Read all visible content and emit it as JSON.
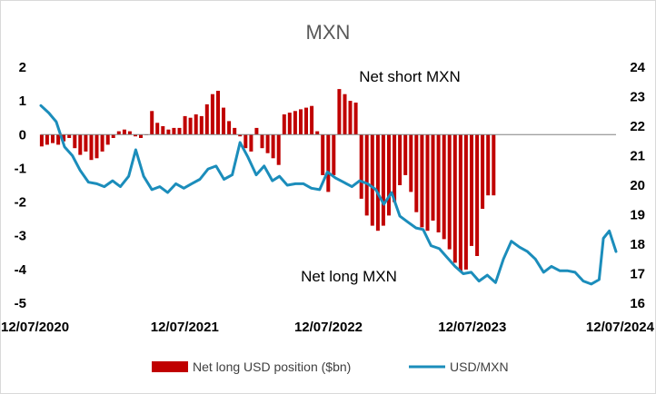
{
  "chart_data": {
    "type": "bar",
    "title": "MXN",
    "xlabel": "",
    "ylabel": "",
    "x_range": [
      "2020-07-12",
      "2024-07-12"
    ],
    "x_ticks": [
      "12/07/2020",
      "12/07/2021",
      "12/07/2022",
      "12/07/2023",
      "12/07/2024"
    ],
    "y_left_lim": [
      -5,
      2
    ],
    "y_left_ticks": [
      "2",
      "1",
      "0",
      "-1",
      "-2",
      "-3",
      "-4",
      "-5"
    ],
    "y_right_lim": [
      16,
      24
    ],
    "y_right_ticks": [
      "24",
      "23",
      "22",
      "21",
      "20",
      "19",
      "18",
      "17",
      "16"
    ],
    "grid": false,
    "legend_position": "bottom",
    "annotations": [
      "Net short MXN",
      "Net long MXN"
    ],
    "colors": {
      "bars": "#c00000",
      "line": "#1b8dbb"
    },
    "series": [
      {
        "name": "Net long USD position ($bn)",
        "axis": "left",
        "type": "bar",
        "points": [
          [
            "2020-07-14",
            -0.35
          ],
          [
            "2020-07-28",
            -0.3
          ],
          [
            "2020-08-11",
            -0.25
          ],
          [
            "2020-08-25",
            -0.3
          ],
          [
            "2020-09-08",
            -0.2
          ],
          [
            "2020-09-22",
            -0.1
          ],
          [
            "2020-10-06",
            -0.4
          ],
          [
            "2020-10-20",
            -0.6
          ],
          [
            "2020-11-03",
            -0.5
          ],
          [
            "2020-11-17",
            -0.75
          ],
          [
            "2020-12-01",
            -0.7
          ],
          [
            "2020-12-15",
            -0.5
          ],
          [
            "2020-12-29",
            -0.3
          ],
          [
            "2021-01-12",
            -0.1
          ],
          [
            "2021-01-26",
            0.1
          ],
          [
            "2021-02-09",
            0.15
          ],
          [
            "2021-02-23",
            0.1
          ],
          [
            "2021-03-09",
            -0.05
          ],
          [
            "2021-03-23",
            -0.1
          ],
          [
            "2021-04-06",
            0.0
          ],
          [
            "2021-04-20",
            0.7
          ],
          [
            "2021-05-04",
            0.35
          ],
          [
            "2021-05-18",
            0.25
          ],
          [
            "2021-06-01",
            0.15
          ],
          [
            "2021-06-15",
            0.2
          ],
          [
            "2021-06-29",
            0.2
          ],
          [
            "2021-07-13",
            0.55
          ],
          [
            "2021-07-27",
            0.5
          ],
          [
            "2021-08-10",
            0.6
          ],
          [
            "2021-08-24",
            0.55
          ],
          [
            "2021-09-07",
            0.9
          ],
          [
            "2021-09-21",
            1.2
          ],
          [
            "2021-10-05",
            1.3
          ],
          [
            "2021-10-19",
            0.8
          ],
          [
            "2021-11-02",
            0.4
          ],
          [
            "2021-11-16",
            0.2
          ],
          [
            "2021-11-30",
            -0.05
          ],
          [
            "2021-12-14",
            -0.4
          ],
          [
            "2021-12-28",
            -0.5
          ],
          [
            "2022-01-11",
            0.2
          ],
          [
            "2022-01-25",
            -0.4
          ],
          [
            "2022-02-08",
            -0.55
          ],
          [
            "2022-02-22",
            -0.7
          ],
          [
            "2022-03-08",
            -0.9
          ],
          [
            "2022-03-22",
            0.6
          ],
          [
            "2022-04-05",
            0.65
          ],
          [
            "2022-04-19",
            0.7
          ],
          [
            "2022-05-03",
            0.75
          ],
          [
            "2022-05-17",
            0.8
          ],
          [
            "2022-05-31",
            0.85
          ],
          [
            "2022-06-14",
            0.1
          ],
          [
            "2022-06-28",
            -1.2
          ],
          [
            "2022-07-12",
            -1.7
          ],
          [
            "2022-07-26",
            -1.2
          ],
          [
            "2022-08-09",
            1.35
          ],
          [
            "2022-08-23",
            1.2
          ],
          [
            "2022-09-06",
            1.0
          ],
          [
            "2022-09-20",
            0.95
          ],
          [
            "2022-10-04",
            -1.9
          ],
          [
            "2022-10-18",
            -2.4
          ],
          [
            "2022-11-01",
            -2.7
          ],
          [
            "2022-11-15",
            -2.85
          ],
          [
            "2022-11-29",
            -2.7
          ],
          [
            "2022-12-13",
            -2.4
          ],
          [
            "2022-12-27",
            -2.0
          ],
          [
            "2023-01-10",
            -1.5
          ],
          [
            "2023-01-24",
            -1.2
          ],
          [
            "2023-02-07",
            -1.7
          ],
          [
            "2023-02-21",
            -2.3
          ],
          [
            "2023-03-07",
            -2.75
          ],
          [
            "2023-03-21",
            -2.85
          ],
          [
            "2023-04-04",
            -2.55
          ],
          [
            "2023-04-18",
            -2.9
          ],
          [
            "2023-05-02",
            -3.1
          ],
          [
            "2023-05-16",
            -3.4
          ],
          [
            "2023-05-30",
            -3.8
          ],
          [
            "2023-06-13",
            -4.05
          ],
          [
            "2023-06-27",
            -4.0
          ],
          [
            "2023-07-11",
            -3.3
          ],
          [
            "2023-07-25",
            -3.6
          ],
          [
            "2023-08-08",
            -2.2
          ],
          [
            "2023-08-22",
            -1.8
          ],
          [
            "2023-09-05",
            -1.8
          ]
        ]
      },
      {
        "name": "USD/MXN",
        "axis": "right",
        "type": "line",
        "points": [
          [
            "2020-07-12",
            22.7
          ],
          [
            "2020-08-01",
            22.45
          ],
          [
            "2020-08-20",
            22.15
          ],
          [
            "2020-09-10",
            21.3
          ],
          [
            "2020-09-30",
            21.0
          ],
          [
            "2020-10-20",
            20.5
          ],
          [
            "2020-11-10",
            20.1
          ],
          [
            "2020-12-01",
            20.05
          ],
          [
            "2020-12-20",
            19.95
          ],
          [
            "2021-01-10",
            20.15
          ],
          [
            "2021-01-30",
            19.95
          ],
          [
            "2021-02-20",
            20.3
          ],
          [
            "2021-03-10",
            21.2
          ],
          [
            "2021-03-30",
            20.3
          ],
          [
            "2021-04-20",
            19.85
          ],
          [
            "2021-05-10",
            19.95
          ],
          [
            "2021-05-30",
            19.75
          ],
          [
            "2021-06-20",
            20.05
          ],
          [
            "2021-07-10",
            19.9
          ],
          [
            "2021-07-30",
            20.05
          ],
          [
            "2021-08-20",
            20.2
          ],
          [
            "2021-09-10",
            20.55
          ],
          [
            "2021-09-30",
            20.65
          ],
          [
            "2021-10-20",
            20.2
          ],
          [
            "2021-11-10",
            20.35
          ],
          [
            "2021-11-30",
            21.45
          ],
          [
            "2021-12-20",
            20.95
          ],
          [
            "2022-01-10",
            20.35
          ],
          [
            "2022-01-30",
            20.65
          ],
          [
            "2022-02-20",
            20.15
          ],
          [
            "2022-03-10",
            20.3
          ],
          [
            "2022-03-30",
            20.0
          ],
          [
            "2022-04-20",
            20.05
          ],
          [
            "2022-05-10",
            20.05
          ],
          [
            "2022-05-30",
            19.9
          ],
          [
            "2022-06-20",
            19.85
          ],
          [
            "2022-07-10",
            20.45
          ],
          [
            "2022-07-30",
            20.25
          ],
          [
            "2022-08-20",
            20.1
          ],
          [
            "2022-09-10",
            19.95
          ],
          [
            "2022-09-30",
            20.15
          ],
          [
            "2022-10-20",
            20.05
          ],
          [
            "2022-11-10",
            19.85
          ],
          [
            "2022-11-30",
            19.35
          ],
          [
            "2022-12-20",
            19.75
          ],
          [
            "2023-01-10",
            18.95
          ],
          [
            "2023-01-30",
            18.75
          ],
          [
            "2023-02-20",
            18.55
          ],
          [
            "2023-03-10",
            18.5
          ],
          [
            "2023-03-30",
            17.95
          ],
          [
            "2023-04-20",
            17.85
          ],
          [
            "2023-05-10",
            17.55
          ],
          [
            "2023-05-30",
            17.25
          ],
          [
            "2023-06-20",
            17.0
          ],
          [
            "2023-07-10",
            17.05
          ],
          [
            "2023-07-30",
            16.75
          ],
          [
            "2023-08-20",
            16.95
          ],
          [
            "2023-09-10",
            16.7
          ],
          [
            "2023-09-30",
            17.5
          ],
          [
            "2023-10-20",
            18.1
          ],
          [
            "2023-11-10",
            17.9
          ],
          [
            "2023-11-30",
            17.75
          ],
          [
            "2023-12-20",
            17.5
          ],
          [
            "2024-01-10",
            17.05
          ],
          [
            "2024-01-30",
            17.25
          ],
          [
            "2024-02-20",
            17.1
          ],
          [
            "2024-03-10",
            17.1
          ],
          [
            "2024-03-30",
            17.05
          ],
          [
            "2024-04-20",
            16.75
          ],
          [
            "2024-05-10",
            16.65
          ],
          [
            "2024-05-30",
            16.8
          ],
          [
            "2024-06-10",
            18.2
          ],
          [
            "2024-06-25",
            18.45
          ],
          [
            "2024-07-12",
            17.75
          ]
        ]
      }
    ]
  }
}
